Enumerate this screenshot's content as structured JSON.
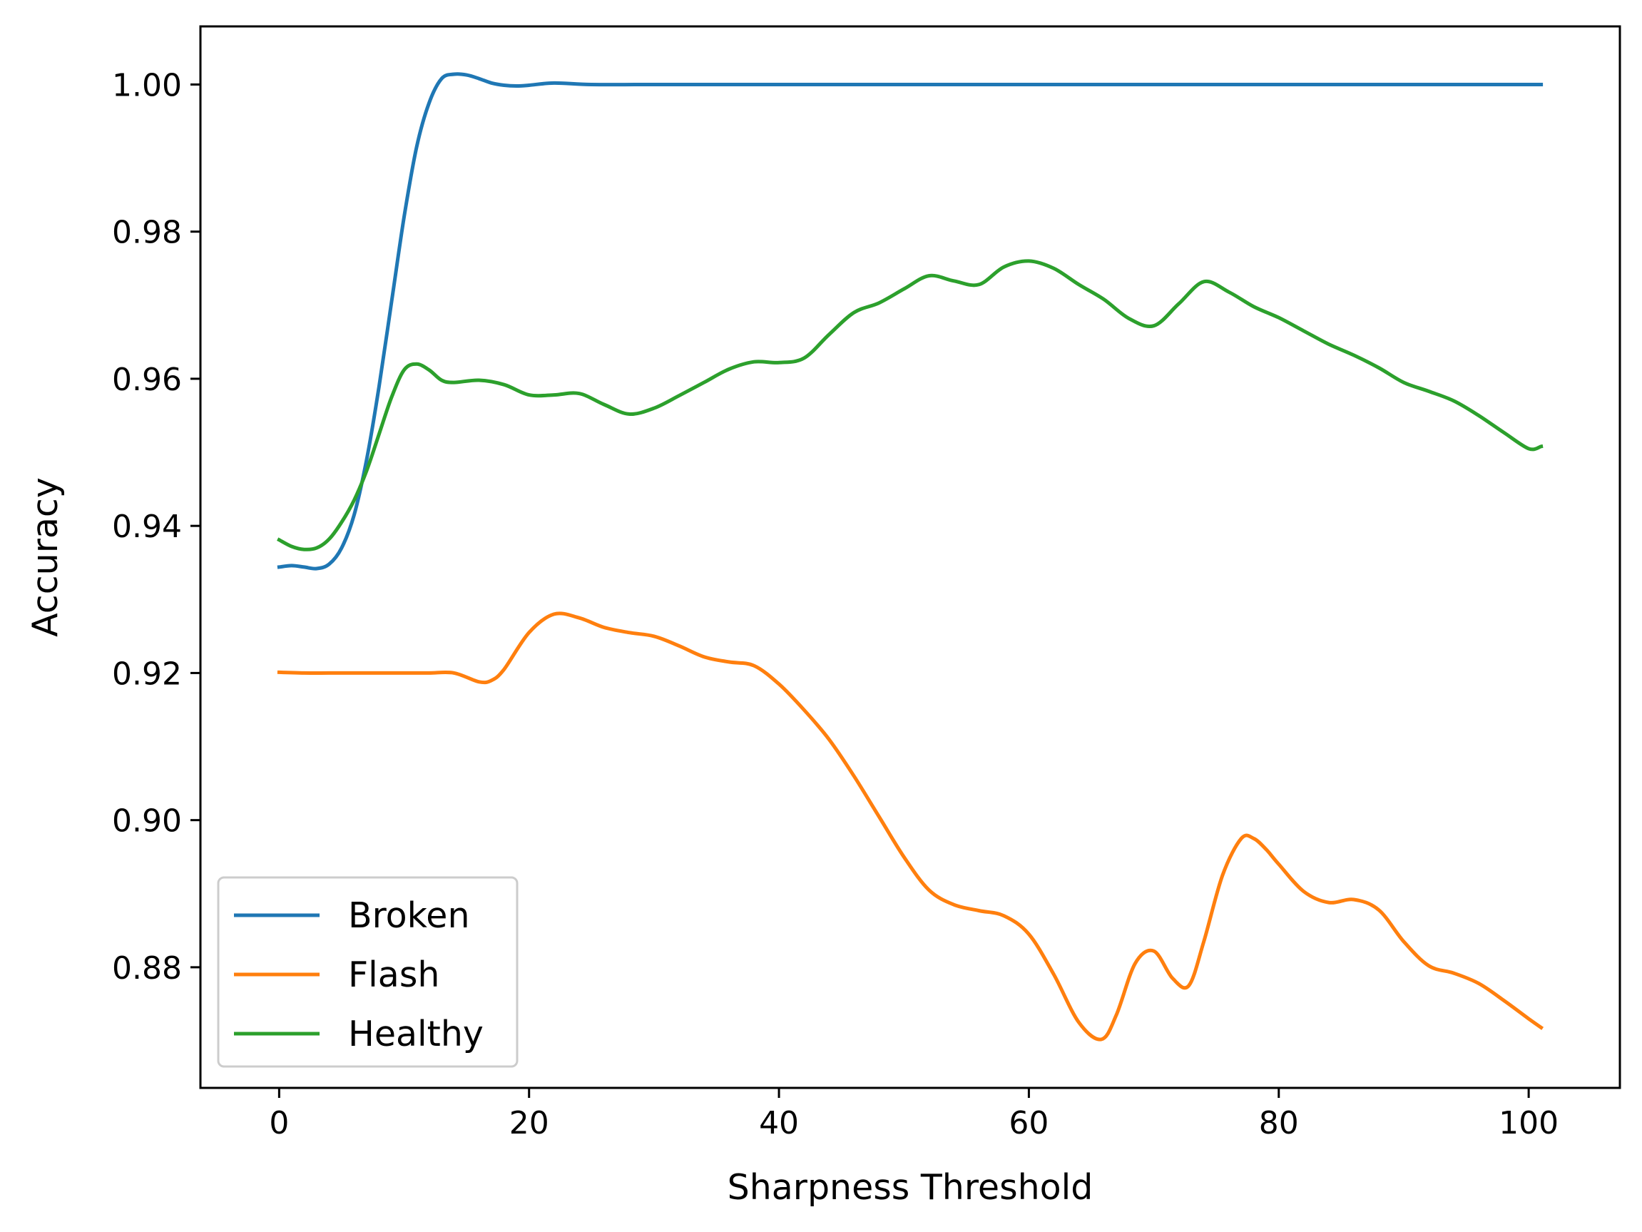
{
  "chart_data": {
    "type": "line",
    "title": "",
    "xlabel": "Sharpness Threshold",
    "ylabel": "Accuracy",
    "xlim": [
      -6.3,
      107.3
    ],
    "ylim": [
      0.8636,
      1.0079
    ],
    "xticks": [
      0,
      20,
      40,
      60,
      80,
      100
    ],
    "yticks": [
      0.88,
      0.9,
      0.92,
      0.94,
      0.96,
      0.98,
      1.0
    ],
    "xtick_labels": [
      "0",
      "20",
      "40",
      "60",
      "80",
      "100"
    ],
    "ytick_labels": [
      "0.88",
      "0.90",
      "0.92",
      "0.94",
      "0.96",
      "0.98",
      "1.00"
    ],
    "grid": false,
    "legend_position": "lower-left",
    "series": [
      {
        "name": "Broken",
        "color": "#1f77b4",
        "x": [
          0,
          1,
          2,
          3,
          4,
          5,
          6,
          7,
          8,
          9,
          10,
          11,
          12,
          13,
          14,
          15,
          16,
          17,
          18,
          19,
          20,
          22,
          25,
          30,
          40,
          50,
          60,
          70,
          80,
          90,
          101
        ],
        "y": [
          0.9344,
          0.9346,
          0.9344,
          0.9342,
          0.9348,
          0.937,
          0.9415,
          0.949,
          0.959,
          0.9705,
          0.982,
          0.9915,
          0.9975,
          1.0008,
          1.0014,
          1.0013,
          1.0008,
          1.0002,
          0.9999,
          0.9998,
          0.9999,
          1.0002,
          1.0,
          1.0,
          1.0,
          1.0,
          1.0,
          1.0,
          1.0,
          1.0,
          1.0
        ]
      },
      {
        "name": "Flash",
        "color": "#ff7f0e",
        "x": [
          0,
          2,
          4,
          6,
          8,
          10,
          12,
          14,
          16,
          17,
          18,
          20,
          22,
          24,
          26,
          28,
          30,
          32,
          34,
          36,
          38,
          40,
          42,
          44,
          46,
          48,
          50,
          52,
          54,
          56,
          58,
          60,
          62,
          64,
          65.8,
          67,
          68.5,
          70,
          71.5,
          72.8,
          74,
          75.5,
          77,
          78,
          79,
          80,
          82,
          84,
          86,
          88,
          90,
          92,
          94,
          96,
          98,
          100,
          101
        ],
        "y": [
          0.9201,
          0.92,
          0.92,
          0.92,
          0.92,
          0.92,
          0.92,
          0.92,
          0.9188,
          0.919,
          0.9205,
          0.9255,
          0.928,
          0.9275,
          0.9262,
          0.9255,
          0.925,
          0.9237,
          0.9222,
          0.9215,
          0.921,
          0.9185,
          0.915,
          0.911,
          0.906,
          0.9005,
          0.895,
          0.8905,
          0.8885,
          0.8877,
          0.887,
          0.8845,
          0.879,
          0.8725,
          0.8702,
          0.8735,
          0.8805,
          0.8822,
          0.8785,
          0.8775,
          0.8835,
          0.8925,
          0.8975,
          0.8975,
          0.896,
          0.894,
          0.8903,
          0.8888,
          0.8892,
          0.8878,
          0.8835,
          0.8802,
          0.8792,
          0.8778,
          0.8755,
          0.873,
          0.8718
        ]
      },
      {
        "name": "Healthy",
        "color": "#2ca02c",
        "x": [
          0,
          1,
          2,
          3,
          4,
          5,
          6,
          7,
          8,
          9,
          10,
          11,
          12,
          13,
          14,
          16,
          18,
          20,
          22,
          24,
          26,
          28,
          30,
          32,
          34,
          36,
          38,
          40,
          42,
          44,
          46,
          48,
          50,
          52,
          54,
          56,
          58,
          60,
          62,
          64,
          66,
          68,
          70,
          72,
          74,
          76,
          78,
          80,
          82,
          84,
          86,
          88,
          90,
          92,
          94,
          96,
          98,
          100,
          101
        ],
        "y": [
          0.9381,
          0.9372,
          0.9368,
          0.937,
          0.9382,
          0.9405,
          0.9435,
          0.9475,
          0.9525,
          0.9575,
          0.9612,
          0.962,
          0.9612,
          0.9598,
          0.9595,
          0.9598,
          0.9592,
          0.9578,
          0.9578,
          0.958,
          0.9565,
          0.9552,
          0.956,
          0.9577,
          0.9595,
          0.9613,
          0.9623,
          0.9622,
          0.9628,
          0.966,
          0.969,
          0.9703,
          0.9722,
          0.974,
          0.9733,
          0.9728,
          0.9752,
          0.976,
          0.975,
          0.9728,
          0.9708,
          0.9682,
          0.9672,
          0.9702,
          0.9732,
          0.9718,
          0.9698,
          0.9683,
          0.9665,
          0.9647,
          0.9632,
          0.9615,
          0.9595,
          0.9583,
          0.957,
          0.955,
          0.9527,
          0.9505,
          0.9508
        ]
      }
    ]
  }
}
